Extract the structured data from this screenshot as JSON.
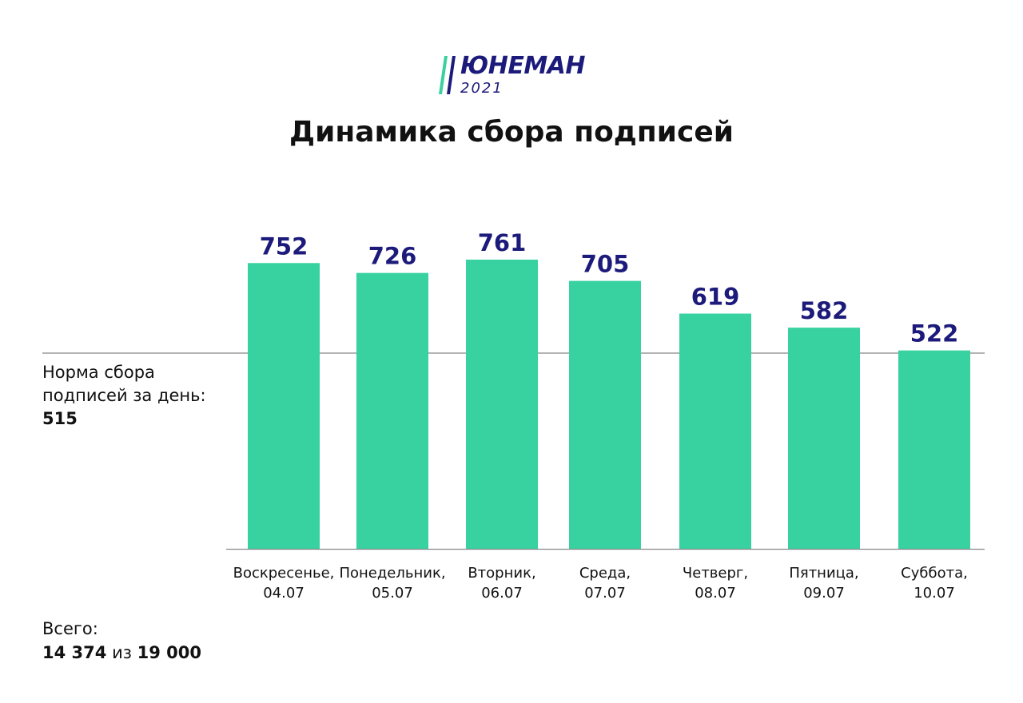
{
  "logo": {
    "name": "ЮНЕМАН",
    "year": "2021",
    "mark_colors": [
      "#3ccfa0",
      "#1c1a7a"
    ]
  },
  "title": "Динамика сбора подписей",
  "norm": {
    "line1": "Норма сбора",
    "line2": "подписей за день:",
    "value": 515
  },
  "total": {
    "label": "Всего:",
    "collected": "14 374",
    "of_word": "из",
    "target": "19 000"
  },
  "colors": {
    "bar": "#38d1a0",
    "value_label": "#1c1a7a",
    "norm_line": "#888888",
    "axis": "#888888"
  },
  "chart_data": {
    "type": "bar",
    "title": "Динамика сбора подписей",
    "categories": [
      [
        "Воскресенье,",
        "04.07"
      ],
      [
        "Понедельник,",
        "05.07"
      ],
      [
        "Вторник,",
        "06.07"
      ],
      [
        "Среда,",
        "07.07"
      ],
      [
        "Четверг,",
        "08.07"
      ],
      [
        "Пятница,",
        "09.07"
      ],
      [
        "Суббота,",
        "10.07"
      ]
    ],
    "values": [
      752,
      726,
      761,
      705,
      619,
      582,
      522
    ],
    "reference_line": {
      "value": 515
    },
    "ylim": [
      0,
      761
    ],
    "grid": false,
    "legend": "none"
  }
}
